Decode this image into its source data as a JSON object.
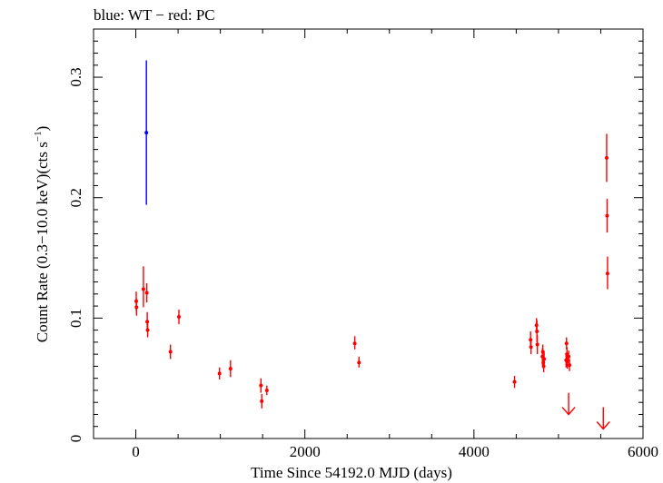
{
  "chart_data": {
    "type": "scatter",
    "title": "blue: WT − red: PC",
    "xlabel": "Time Since 54192.0 MJD (days)",
    "ylabel_parts": {
      "pre": "Count Rate (0.3−10.0 keV)(cts s",
      "sup": "−1",
      "post": ")"
    },
    "xlim": [
      -500,
      6000
    ],
    "ylim": [
      0,
      0.34
    ],
    "xticks": [
      {
        "v": 0,
        "label": "0"
      },
      {
        "v": 2000,
        "label": "2000"
      },
      {
        "v": 4000,
        "label": "4000"
      },
      {
        "v": 6000,
        "label": "6000"
      }
    ],
    "yticks": [
      {
        "v": 0,
        "label": "0"
      },
      {
        "v": 0.1,
        "label": "0.1"
      },
      {
        "v": 0.2,
        "label": "0.2"
      },
      {
        "v": 0.3,
        "label": "0.3"
      }
    ],
    "grid": false,
    "series": [
      {
        "mode": "WT",
        "color": "#0000ff",
        "points": [
          {
            "x": 125,
            "y": 0.254,
            "ylo": 0.194,
            "yhi": 0.314
          }
        ]
      },
      {
        "mode": "PC",
        "color": "#ff0000",
        "points": [
          {
            "x": 5,
            "y": 0.114,
            "ylo": 0.106,
            "yhi": 0.122
          },
          {
            "x": 8,
            "y": 0.109,
            "ylo": 0.102,
            "yhi": 0.116
          },
          {
            "x": 90,
            "y": 0.124,
            "ylo": 0.109,
            "yhi": 0.143
          },
          {
            "x": 130,
            "y": 0.121,
            "ylo": 0.113,
            "yhi": 0.129
          },
          {
            "x": 135,
            "y": 0.097,
            "ylo": 0.089,
            "yhi": 0.105
          },
          {
            "x": 140,
            "y": 0.09,
            "ylo": 0.084,
            "yhi": 0.096
          },
          {
            "x": 410,
            "y": 0.072,
            "ylo": 0.066,
            "yhi": 0.078
          },
          {
            "x": 510,
            "y": 0.101,
            "ylo": 0.095,
            "yhi": 0.107
          },
          {
            "x": 990,
            "y": 0.054,
            "ylo": 0.049,
            "yhi": 0.059
          },
          {
            "x": 1120,
            "y": 0.058,
            "ylo": 0.051,
            "yhi": 0.065
          },
          {
            "x": 1480,
            "y": 0.044,
            "ylo": 0.038,
            "yhi": 0.05
          },
          {
            "x": 1490,
            "y": 0.031,
            "ylo": 0.025,
            "yhi": 0.037
          },
          {
            "x": 1550,
            "y": 0.04,
            "ylo": 0.036,
            "yhi": 0.044
          },
          {
            "x": 2590,
            "y": 0.079,
            "ylo": 0.074,
            "yhi": 0.085
          },
          {
            "x": 2640,
            "y": 0.063,
            "ylo": 0.059,
            "yhi": 0.068
          },
          {
            "x": 4480,
            "y": 0.047,
            "ylo": 0.042,
            "yhi": 0.052
          },
          {
            "x": 4670,
            "y": 0.082,
            "ylo": 0.076,
            "yhi": 0.089
          },
          {
            "x": 4675,
            "y": 0.076,
            "ylo": 0.07,
            "yhi": 0.082
          },
          {
            "x": 4740,
            "y": 0.094,
            "ylo": 0.088,
            "yhi": 0.1
          },
          {
            "x": 4745,
            "y": 0.089,
            "ylo": 0.08,
            "yhi": 0.098
          },
          {
            "x": 4750,
            "y": 0.078,
            "ylo": 0.07,
            "yhi": 0.086
          },
          {
            "x": 4810,
            "y": 0.068,
            "ylo": 0.061,
            "yhi": 0.075
          },
          {
            "x": 4815,
            "y": 0.072,
            "ylo": 0.066,
            "yhi": 0.078
          },
          {
            "x": 4820,
            "y": 0.063,
            "ylo": 0.058,
            "yhi": 0.068
          },
          {
            "x": 4825,
            "y": 0.06,
            "ylo": 0.055,
            "yhi": 0.065
          },
          {
            "x": 4830,
            "y": 0.066,
            "ylo": 0.06,
            "yhi": 0.072
          },
          {
            "x": 5090,
            "y": 0.065,
            "ylo": 0.059,
            "yhi": 0.071
          },
          {
            "x": 5095,
            "y": 0.079,
            "ylo": 0.074,
            "yhi": 0.084
          },
          {
            "x": 5100,
            "y": 0.07,
            "ylo": 0.064,
            "yhi": 0.076
          },
          {
            "x": 5105,
            "y": 0.064,
            "ylo": 0.058,
            "yhi": 0.07
          },
          {
            "x": 5120,
            "y": 0.068,
            "ylo": 0.063,
            "yhi": 0.073
          },
          {
            "x": 5130,
            "y": 0.061,
            "ylo": 0.056,
            "yhi": 0.066
          },
          {
            "x": 5570,
            "y": 0.233,
            "ylo": 0.213,
            "yhi": 0.253
          },
          {
            "x": 5575,
            "y": 0.185,
            "ylo": 0.171,
            "yhi": 0.199
          },
          {
            "x": 5580,
            "y": 0.137,
            "ylo": 0.124,
            "yhi": 0.151
          }
        ],
        "upper_limits": [
          {
            "x": 5120,
            "y": 0.038
          },
          {
            "x": 5530,
            "y": 0.026
          }
        ]
      }
    ]
  }
}
